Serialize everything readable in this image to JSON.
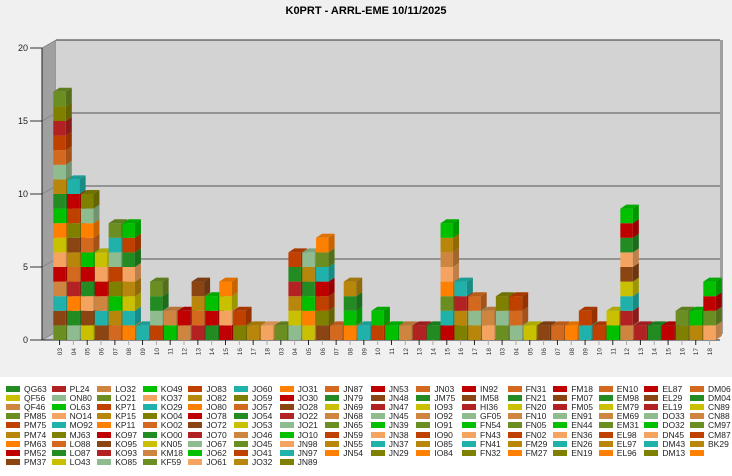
{
  "chart_data": {
    "type": "bar",
    "stacked": true,
    "style": "3d",
    "title": "K0PRT - ARRL-EME 10/11/2025",
    "xlabel": "",
    "ylabel": "",
    "ylim": [
      0,
      20
    ],
    "yticks": [
      "0",
      "5",
      "10",
      "15",
      "20"
    ],
    "grid": true,
    "legend_position": "bottom",
    "categories": [
      "03",
      "04",
      "05",
      "06",
      "07",
      "08",
      "09",
      "10",
      "11",
      "12",
      "13",
      "14",
      "15",
      "16",
      "17",
      "18",
      "03",
      "04",
      "05",
      "06",
      "07",
      "08",
      "09",
      "10",
      "11",
      "12",
      "13",
      "14",
      "15",
      "16",
      "17",
      "18",
      "03",
      "04",
      "05",
      "06",
      "07",
      "08",
      "09",
      "10",
      "11",
      "12",
      "13",
      "14",
      "15",
      "16",
      "17",
      "18"
    ],
    "values": [
      17,
      11,
      10,
      6,
      8,
      8,
      1,
      4,
      2,
      2,
      4,
      3,
      4,
      2,
      1,
      1,
      1,
      6,
      6,
      7,
      1,
      4,
      1,
      2,
      1,
      1,
      1,
      1,
      8,
      4,
      3,
      2,
      3,
      3,
      1,
      1,
      1,
      1,
      2,
      1,
      2,
      9,
      1,
      1,
      1,
      2,
      2,
      4
    ],
    "palette": [
      "#228B22",
      "#C8C000",
      "#CD853F",
      "#6B8E23",
      "#C04000",
      "#B8860B",
      "#FF8000",
      "#C00000",
      "#8B4513",
      "#B22222",
      "#8FBC8F",
      "#00C000",
      "#F4A460",
      "#20B2AA",
      "#808000",
      "#D2691E"
    ],
    "legend": [
      "QG63",
      "QF56",
      "QF46",
      "PM85",
      "PM75",
      "PM74",
      "PM63",
      "PM52",
      "PM37",
      "PL24",
      "ON80",
      "OL63",
      "NO14",
      "MO92",
      "MJ63",
      "LO88",
      "LO87",
      "LO43",
      "LO32",
      "LO21",
      "KP71",
      "KP15",
      "KP11",
      "KO97",
      "KO95",
      "KO93",
      "KO85",
      "KO49",
      "KO37",
      "KO29",
      "KO04",
      "KO02",
      "KO00",
      "KN05",
      "KM18",
      "KF59",
      "JO83",
      "JO82",
      "JO80",
      "JO78",
      "JO72",
      "JO70",
      "JO67",
      "JO62",
      "JO61",
      "JO60",
      "JO59",
      "JO57",
      "JO54",
      "JO53",
      "JO46",
      "JO45",
      "JO41",
      "JO32",
      "JO31",
      "JO30",
      "JO28",
      "JO22",
      "JO21",
      "JO10",
      "JN98",
      "JN97",
      "JN89",
      "JN87",
      "JN79",
      "JN69",
      "JN68",
      "JN65",
      "JN59",
      "JN55",
      "JN54",
      "JN53",
      "JN48",
      "JN47",
      "JN45",
      "JN39",
      "JN38",
      "JN37",
      "JN29",
      "JN03",
      "JM75",
      "IO93",
      "IO92",
      "IO91",
      "IO90",
      "IO85",
      "IO84",
      "IN92",
      "IM58",
      "HI36",
      "GF05",
      "FN54",
      "FN43",
      "FN41",
      "FN32",
      "FN31",
      "FN21",
      "FN20",
      "FN10",
      "FN05",
      "FN02",
      "FM29",
      "FM27",
      "FM18",
      "FM07",
      "FM05",
      "EN91",
      "EN44",
      "EN36",
      "EN26",
      "EN19",
      "EN10",
      "EM98",
      "EM79",
      "EM69",
      "EM31",
      "EL98",
      "EL97",
      "EL96",
      "EL87",
      "EL29",
      "EL19",
      "DO33",
      "DO32",
      "DN45",
      "DM43",
      "DM13",
      "DM06",
      "DM04",
      "CN89",
      "CN88",
      "CM97",
      "CM87",
      "BK29",
      ""
    ]
  }
}
